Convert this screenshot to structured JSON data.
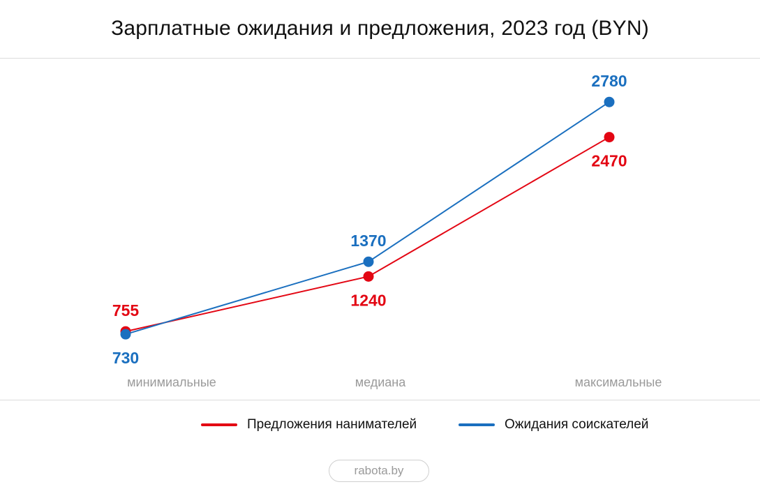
{
  "title": "Зарплатные ожидания и предложения, 2023 год (BYN)",
  "source_label": "rabota.by",
  "colors": {
    "offers": "#e30613",
    "expectations": "#1a6fbf",
    "category_label": "#9a9a9a"
  },
  "chart_data": {
    "type": "line",
    "title": "Зарплатные ожидания и предложения, 2023 год (BYN)",
    "categories": [
      "минимиальные",
      "медиана",
      "максимальные"
    ],
    "series": [
      {
        "name": "Предложения нанимателей",
        "key": "offers",
        "values": [
          755,
          1240,
          2470
        ],
        "labels": [
          "755",
          "1240",
          "2470"
        ],
        "label_side": [
          "above",
          "below",
          "below"
        ]
      },
      {
        "name": "Ожидания соискателей",
        "key": "expectations",
        "values": [
          730,
          1370,
          2780
        ],
        "labels": [
          "730",
          "1370",
          "2780"
        ],
        "label_side": [
          "below",
          "above",
          "above"
        ]
      }
    ],
    "ylim": [
      0,
      3200
    ],
    "grid": false,
    "legend": "bottom"
  }
}
